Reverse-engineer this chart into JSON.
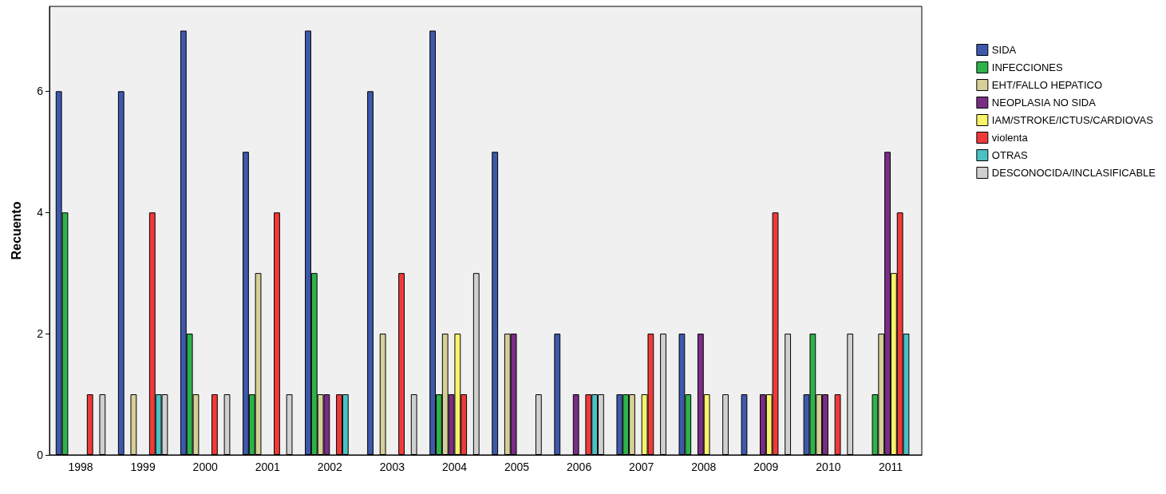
{
  "chart_data": {
    "type": "bar",
    "ylabel": "Recuento",
    "categories": [
      "1998",
      "1999",
      "2000",
      "2001",
      "2002",
      "2003",
      "2004",
      "2005",
      "2006",
      "2007",
      "2008",
      "2009",
      "2010",
      "2011"
    ],
    "series": [
      {
        "name": "SIDA",
        "color": "#3e58ac",
        "values": [
          6,
          6,
          7,
          5,
          7,
          6,
          7,
          5,
          2,
          1,
          2,
          1,
          1,
          null
        ]
      },
      {
        "name": "INFECCIONES",
        "color": "#2db34a",
        "values": [
          4,
          null,
          2,
          1,
          3,
          null,
          1,
          null,
          null,
          1,
          1,
          null,
          2,
          1
        ]
      },
      {
        "name": "EHT/FALLO HEPATICO",
        "color": "#d6cf97",
        "values": [
          null,
          1,
          1,
          3,
          1,
          2,
          2,
          2,
          null,
          1,
          null,
          null,
          1,
          2
        ]
      },
      {
        "name": "NEOPLASIA NO SIDA",
        "color": "#7b2d86",
        "values": [
          null,
          null,
          null,
          null,
          1,
          null,
          1,
          2,
          1,
          null,
          2,
          1,
          1,
          5
        ]
      },
      {
        "name": "IAM/STROKE/ICTUS/CARDIOVAS",
        "color": "#f8f36a",
        "values": [
          null,
          null,
          null,
          null,
          null,
          null,
          2,
          null,
          null,
          1,
          1,
          1,
          null,
          3
        ]
      },
      {
        "name": "violenta",
        "color": "#f03a3a",
        "values": [
          1,
          4,
          1,
          4,
          1,
          3,
          1,
          null,
          1,
          2,
          null,
          4,
          1,
          4
        ]
      },
      {
        "name": "OTRAS",
        "color": "#4bc1c4",
        "values": [
          null,
          1,
          null,
          null,
          1,
          null,
          null,
          null,
          1,
          null,
          null,
          null,
          null,
          2
        ]
      },
      {
        "name": "DESCONOCIDA/INCLASIFICABLE",
        "color": "#d0d0d0",
        "values": [
          1,
          1,
          1,
          1,
          null,
          1,
          3,
          1,
          1,
          2,
          1,
          2,
          2,
          null
        ]
      }
    ],
    "ylim": [
      0,
      7.4
    ],
    "yticks": [
      0,
      2,
      4,
      6
    ],
    "grid": false,
    "legend": "top right"
  }
}
